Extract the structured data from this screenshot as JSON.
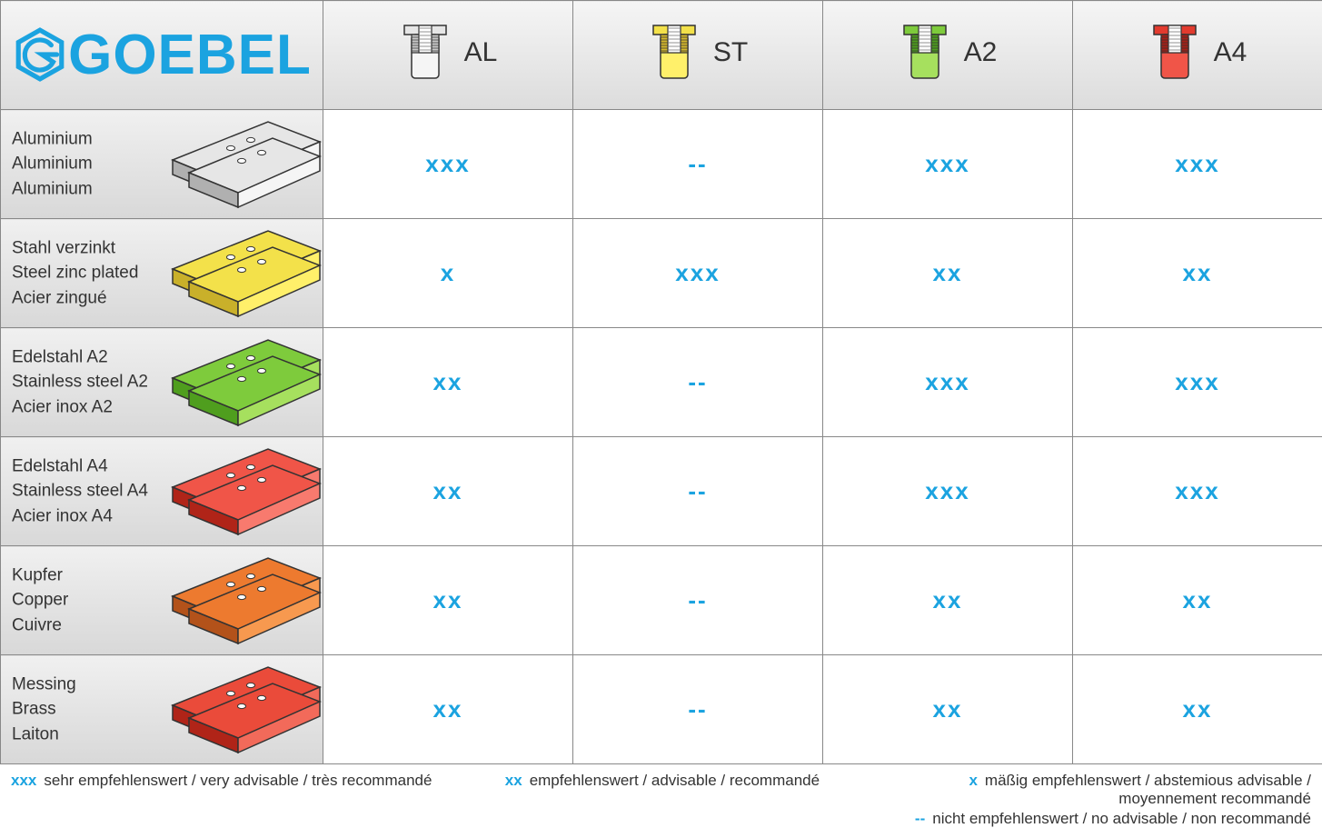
{
  "brand": {
    "name": "GOEBEL",
    "color": "#1ba3e0"
  },
  "accent_color": "#1ba3e0",
  "columns": [
    {
      "code": "AL",
      "top": "#e6e6e6",
      "side": "#c9c9c9",
      "front": "#f5f5f5"
    },
    {
      "code": "ST",
      "top": "#f3e14a",
      "side": "#d4b82d",
      "front": "#fff06a"
    },
    {
      "code": "A2",
      "top": "#7ecb3c",
      "side": "#4f9e1e",
      "front": "#a6e05e"
    },
    {
      "code": "A4",
      "top": "#e23b2e",
      "side": "#a81f16",
      "front": "#f05548"
    }
  ],
  "rows": [
    {
      "labels": [
        "Aluminium",
        "Aluminium",
        "Aluminium"
      ],
      "plate": {
        "top": "#e6e6e6",
        "side": "#b0b0b0",
        "front": "#f5f5f5"
      },
      "values": [
        "xxx",
        "--",
        "xxx",
        "xxx"
      ]
    },
    {
      "labels": [
        "Stahl verzinkt",
        "Steel zinc plated",
        "Acier zingué"
      ],
      "plate": {
        "top": "#f3e14a",
        "side": "#c9b02a",
        "front": "#fff06a"
      },
      "values": [
        "x",
        "xxx",
        "xx",
        "xx"
      ]
    },
    {
      "labels": [
        "Edelstahl A2",
        "Stainless steel A2",
        "Acier inox A2"
      ],
      "plate": {
        "top": "#7ecb3c",
        "side": "#4f9e1e",
        "front": "#a6e05e"
      },
      "values": [
        "xx",
        "--",
        "xxx",
        "xxx"
      ]
    },
    {
      "labels": [
        "Edelstahl A4",
        "Stainless steel A4",
        "Acier inox A4"
      ],
      "plate": {
        "top": "#f05548",
        "side": "#b02418",
        "front": "#f87a6e"
      },
      "values": [
        "xx",
        "--",
        "xxx",
        "xxx"
      ]
    },
    {
      "labels": [
        "Kupfer",
        "Copper",
        "Cuivre"
      ],
      "plate": {
        "top": "#ed7a2f",
        "side": "#b3521a",
        "front": "#f7994f"
      },
      "values": [
        "xx",
        "--",
        "xx",
        "xx"
      ]
    },
    {
      "labels": [
        "Messing",
        "Brass",
        "Laiton"
      ],
      "plate": {
        "top": "#ea4b3a",
        "side": "#b02418",
        "front": "#f26a5a"
      },
      "values": [
        "xx",
        "--",
        "xx",
        "xx"
      ]
    }
  ],
  "legend": {
    "l1": {
      "sym": "xxx",
      "text": "sehr empfehlenswert / very advisable / très recommandé"
    },
    "l2": {
      "sym": "xx",
      "text": "empfehlenswert / advisable /  recommandé"
    },
    "l3": {
      "sym": "x",
      "text": "mäßig empfehlenswert / abstemious advisable / moyennement recommandé"
    },
    "l4": {
      "sym": "--",
      "text": "nicht empfehlenswert / no advisable / non recommandé"
    }
  }
}
